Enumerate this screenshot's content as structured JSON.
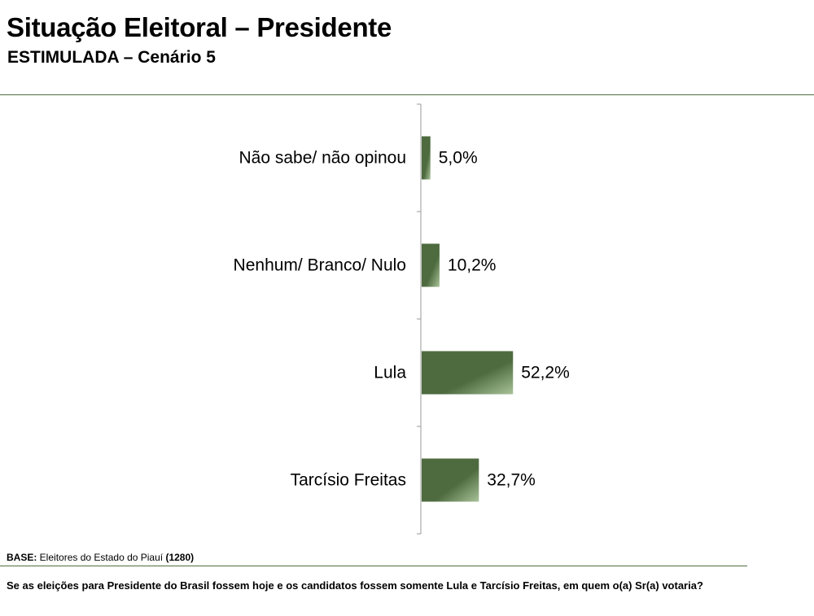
{
  "header": {
    "title": "Situação Eleitoral – Presidente",
    "subtitle": "ESTIMULADA – Cenário 5"
  },
  "chart_data": {
    "type": "bar",
    "orientation": "horizontal",
    "categories": [
      "Não sabe/ não opinou",
      "Nenhum/ Branco/ Nulo",
      "Lula",
      "Tarcísio Freitas"
    ],
    "values": [
      5.0,
      10.2,
      52.2,
      32.7
    ],
    "value_labels": [
      "5,0%",
      "10,2%",
      "52,2%",
      "32,7%"
    ],
    "unit": "%",
    "xlim": [
      0,
      100
    ],
    "grid": false,
    "legend": "none",
    "bar_color": "#4e6b3f",
    "bar_highlight_color": "#a9c399"
  },
  "footer": {
    "base_label": "BASE:",
    "base_text": " Eleitores do Estado do Piauí ",
    "base_count": "(1280)",
    "question": "Se as eleições para Presidente do Brasil fossem hoje e os candidatos fossem somente Lula e Tarcísio Freitas, em quem o(a) Sr(a) votaria?"
  }
}
